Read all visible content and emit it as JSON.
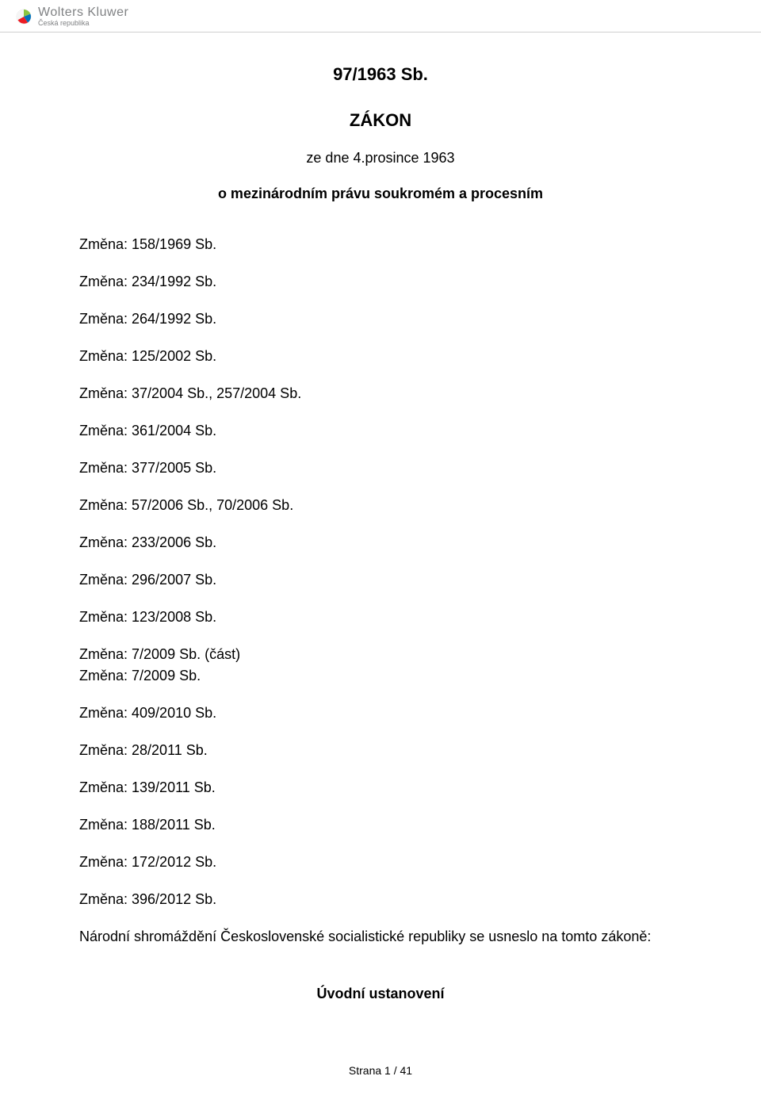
{
  "header": {
    "brand_name": "Wolters Kluwer",
    "brand_sub": "Česká republika",
    "orb_color1": "#8bc540",
    "orb_color2": "#0072bc",
    "orb_color3": "#ec1c24",
    "divider_color": "#cfcfcf"
  },
  "document": {
    "reference": "97/1963 Sb.",
    "type": "ZÁKON",
    "date": "ze dne 4.prosince 1963",
    "subject": "o mezinárodním právu soukromém a procesním"
  },
  "changes": [
    {
      "text": "Změna: 158/1969 Sb."
    },
    {
      "text": "Změna: 234/1992 Sb."
    },
    {
      "text": "Změna: 264/1992 Sb."
    },
    {
      "text": "Změna: 125/2002 Sb."
    },
    {
      "text": "Změna: 37/2004 Sb., 257/2004 Sb."
    },
    {
      "text": "Změna: 361/2004 Sb."
    },
    {
      "text": "Změna: 377/2005 Sb."
    },
    {
      "text": "Změna: 57/2006 Sb., 70/2006 Sb."
    },
    {
      "text": "Změna: 233/2006 Sb."
    },
    {
      "text": "Změna: 296/2007 Sb."
    },
    {
      "text": "Změna: 123/2008 Sb."
    },
    {
      "text": "Změna: 7/2009 Sb. (část)",
      "tight": true
    },
    {
      "text": "Změna: 7/2009 Sb."
    },
    {
      "text": "Změna: 409/2010 Sb."
    },
    {
      "text": "Změna: 28/2011 Sb."
    },
    {
      "text": "Změna: 139/2011 Sb."
    },
    {
      "text": "Změna: 188/2011 Sb."
    },
    {
      "text": "Změna: 172/2012 Sb."
    },
    {
      "text": "Změna: 396/2012 Sb."
    }
  ],
  "preamble": "Národní shromáždění Československé socialistické republiky se usneslo na tomto zákoně:",
  "section_heading": "Úvodní ustanovení",
  "footer": {
    "text": "Strana 1 / 41"
  },
  "styles": {
    "page_bg": "#ffffff",
    "text_color": "#000000",
    "brand_text_color": "#808284",
    "body_fontsize": 18,
    "title_fontsize": 22,
    "footer_fontsize": 14
  }
}
